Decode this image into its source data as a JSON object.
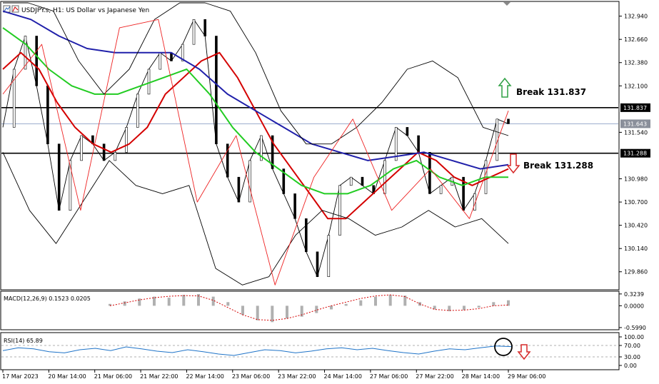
{
  "header": {
    "title": "USDJPY.s, H1:  US Dollar vs Japanese Yen"
  },
  "annotations": {
    "break_up": "Break 131.837",
    "break_down": "Break 131.288"
  },
  "chart_data": [
    {
      "type": "line",
      "panel": "price",
      "title": "USDJPY.s, H1:  US Dollar vs Japanese Yen",
      "y_ticks": [
        "132.940",
        "132.660",
        "132.380",
        "132.100",
        "131.837",
        "131.643",
        "131.540",
        "131.288",
        "130.980",
        "130.700",
        "130.420",
        "130.140",
        "129.860"
      ],
      "ylim": [
        129.66,
        133.1
      ],
      "horizontal_levels": [
        {
          "value": 131.837,
          "label": "131.837",
          "style": "solid-black"
        },
        {
          "value": 131.288,
          "label": "131.288",
          "style": "solid-black"
        },
        {
          "value": 131.643,
          "label": "131.643",
          "style": "thin-blue"
        }
      ],
      "series": [
        {
          "name": "",
          "kind": "close-approx",
          "color": "#000000",
          "values": [
            131.6,
            132.3,
            132.7,
            132.1,
            131.4,
            130.6,
            131.2,
            131.5,
            131.4,
            131.2,
            131.3,
            131.6,
            132.0,
            132.3,
            132.5,
            132.4,
            132.6,
            132.9,
            132.7,
            131.4,
            131.0,
            130.7,
            131.2,
            131.5,
            131.1,
            130.8,
            130.5,
            130.1,
            129.8,
            130.3,
            130.9,
            131.0,
            130.9,
            130.8,
            131.2,
            131.6,
            131.5,
            131.3,
            130.8,
            130.9,
            131.0,
            130.6,
            130.8,
            131.2,
            131.7,
            131.643
          ]
        },
        {
          "name": "",
          "kind": "ma-fast",
          "color": "#d40000",
          "values": [
            132.3,
            132.5,
            132.3,
            131.9,
            131.6,
            131.4,
            131.3,
            131.4,
            131.6,
            132.0,
            132.2,
            132.4,
            132.5,
            132.2,
            131.8,
            131.4,
            131.1,
            130.8,
            130.5,
            130.5,
            130.7,
            130.9,
            131.1,
            131.3,
            131.2,
            131.0,
            130.9,
            131.0,
            131.1
          ]
        },
        {
          "name": "",
          "kind": "ma-mid",
          "color": "#22cc22",
          "values": [
            132.8,
            132.6,
            132.3,
            132.1,
            132.0,
            132.0,
            132.1,
            132.2,
            132.3,
            132.0,
            131.6,
            131.3,
            131.1,
            130.9,
            130.8,
            130.8,
            130.9,
            131.1,
            131.2,
            131.0,
            130.9,
            131.0,
            131.0
          ]
        },
        {
          "name": "",
          "kind": "ma-slow",
          "color": "#2020aa",
          "values": [
            133.0,
            132.9,
            132.7,
            132.55,
            132.5,
            132.5,
            132.5,
            132.3,
            132.0,
            131.8,
            131.6,
            131.4,
            131.3,
            131.2,
            131.25,
            131.3,
            131.2,
            131.1,
            131.15
          ]
        },
        {
          "name": "",
          "kind": "bollinger-upper",
          "color": "#000000",
          "values": [
            133.1,
            133.1,
            133.0,
            132.4,
            132.0,
            132.3,
            132.9,
            133.1,
            133.1,
            133.0,
            132.5,
            131.8,
            131.4,
            131.4,
            131.6,
            131.9,
            132.3,
            132.4,
            132.2,
            131.6,
            131.5
          ]
        },
        {
          "name": "",
          "kind": "bollinger-lower",
          "color": "#000000",
          "values": [
            131.3,
            130.6,
            130.2,
            130.7,
            131.2,
            130.9,
            130.8,
            130.9,
            129.9,
            129.7,
            129.8,
            130.3,
            130.6,
            130.5,
            130.3,
            130.4,
            130.6,
            130.4,
            130.5,
            130.2
          ]
        },
        {
          "name": "",
          "kind": "zigzag",
          "color": "#ee2222",
          "values": [
            132.0,
            132.6,
            130.6,
            132.8,
            132.9,
            130.7,
            131.5,
            129.7,
            131.0,
            131.7,
            130.6,
            131.1,
            130.5,
            131.8
          ]
        }
      ]
    },
    {
      "type": "bar",
      "panel": "macd",
      "title": "MACD(12,26,9) 0.1523 0.0205",
      "y_ticks": [
        "0.3239",
        "0.0000",
        "-0.5990"
      ],
      "ylim": [
        -0.62,
        0.36
      ],
      "series": [
        {
          "name": "",
          "kind": "histogram",
          "color": "#b0b0b0",
          "values": [
            0.05,
            0.12,
            0.2,
            0.25,
            0.22,
            0.3,
            0.32,
            0.25,
            0.1,
            -0.25,
            -0.4,
            -0.45,
            -0.35,
            -0.3,
            -0.2,
            -0.1,
            0.05,
            0.15,
            0.25,
            0.3,
            0.28,
            0.1,
            -0.1,
            -0.15,
            -0.12,
            -0.05,
            0.1,
            0.15
          ]
        },
        {
          "name": "",
          "kind": "signal",
          "color": "#d40000",
          "values": [
            0.0,
            0.08,
            0.16,
            0.22,
            0.26,
            0.28,
            0.27,
            0.15,
            -0.05,
            -0.25,
            -0.38,
            -0.4,
            -0.35,
            -0.25,
            -0.12,
            0.0,
            0.1,
            0.2,
            0.27,
            0.3,
            0.25,
            0.05,
            -0.1,
            -0.13,
            -0.12,
            -0.08,
            0.0,
            0.02
          ]
        }
      ]
    },
    {
      "type": "line",
      "panel": "rsi",
      "title": "RSI(14) 65.89",
      "y_ticks": [
        "100.00",
        "70.00",
        "30.00",
        "0.00"
      ],
      "ylim": [
        0,
        100
      ],
      "levels": [
        70,
        30
      ],
      "series": [
        {
          "name": "",
          "kind": "rsi",
          "color": "#1e73c8",
          "values": [
            52,
            62,
            58,
            48,
            44,
            55,
            60,
            52,
            65,
            58,
            50,
            45,
            55,
            48,
            40,
            35,
            45,
            55,
            52,
            44,
            50,
            58,
            62,
            55,
            60,
            52,
            45,
            40,
            50,
            58,
            55,
            62,
            68,
            65.89
          ]
        }
      ]
    }
  ],
  "x_axis": {
    "labels": [
      "17 Mar 2023",
      "20 Mar 14:00",
      "21 Mar 06:00",
      "21 Mar 22:00",
      "22 Mar 14:00",
      "23 Mar 06:00",
      "23 Mar 22:00",
      "24 Mar 14:00",
      "27 Mar 06:00",
      "27 Mar 22:00",
      "28 Mar 14:00",
      "29 Mar 06:00"
    ]
  },
  "colors": {
    "price_line": "#000000",
    "ma_red": "#d40000",
    "ma_green": "#22cc22",
    "ma_blue": "#2020aa",
    "rsi": "#1e73c8",
    "arrow_up": "#2ea043",
    "arrow_down": "#d62828"
  }
}
